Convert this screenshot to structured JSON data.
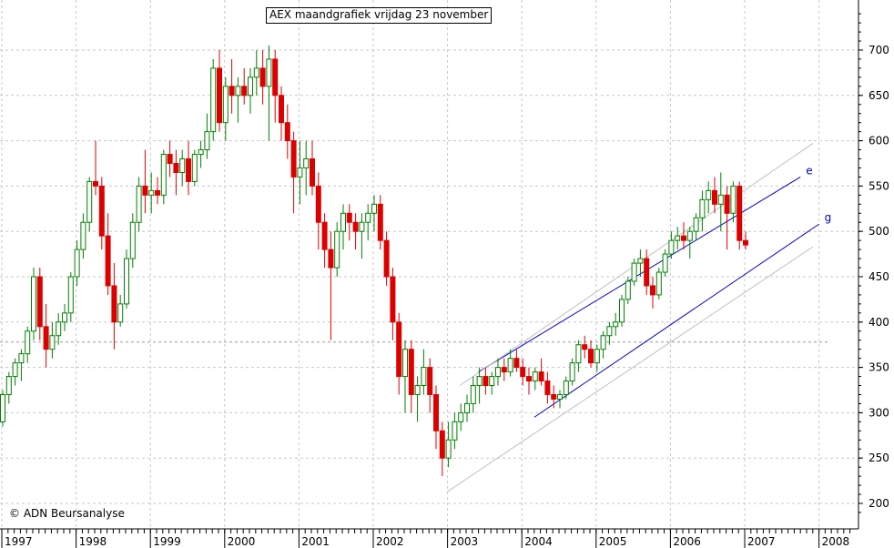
{
  "title": "AEX maandgrafiek vrijdag 23 november",
  "copyright": "© ADN Beursanalyse",
  "colors": {
    "up": "#008000",
    "down": "#dd0000",
    "grid": "#c8c8c8",
    "channel": "#0000cc",
    "outer": "#c0c0c0",
    "refline": "#999999"
  },
  "chart_data": {
    "type": "candlestick",
    "title": "AEX maandgrafiek vrijdag 23 november",
    "ylim": [
      180,
      750
    ],
    "y_ticks": [
      200,
      250,
      300,
      350,
      400,
      450,
      500,
      550,
      600,
      650,
      700
    ],
    "x_start": "1997-01",
    "x_end": "2008-06",
    "year_ticks": [
      "1997",
      "1998",
      "1999",
      "2000",
      "2001",
      "2002",
      "2003",
      "2004",
      "2005",
      "2006",
      "2007",
      "2008"
    ],
    "reference_level": 378,
    "ohlc_note": "each row: [open, high, low, close]; one row per month from 1997-01",
    "ohlc": [
      [
        290,
        325,
        285,
        320
      ],
      [
        320,
        345,
        310,
        340
      ],
      [
        340,
        360,
        330,
        355
      ],
      [
        355,
        370,
        335,
        365
      ],
      [
        365,
        395,
        355,
        390
      ],
      [
        390,
        460,
        380,
        450
      ],
      [
        450,
        460,
        380,
        395
      ],
      [
        395,
        420,
        350,
        370
      ],
      [
        370,
        400,
        360,
        385
      ],
      [
        385,
        410,
        375,
        400
      ],
      [
        400,
        420,
        390,
        410
      ],
      [
        410,
        455,
        400,
        450
      ],
      [
        450,
        490,
        440,
        480
      ],
      [
        480,
        520,
        470,
        510
      ],
      [
        510,
        560,
        500,
        555
      ],
      [
        555,
        600,
        540,
        550
      ],
      [
        550,
        560,
        480,
        495
      ],
      [
        495,
        520,
        430,
        440
      ],
      [
        440,
        465,
        370,
        400
      ],
      [
        400,
        430,
        395,
        420
      ],
      [
        420,
        480,
        415,
        470
      ],
      [
        470,
        520,
        460,
        510
      ],
      [
        510,
        560,
        500,
        550
      ],
      [
        550,
        590,
        520,
        540
      ],
      [
        540,
        565,
        520,
        545
      ],
      [
        545,
        560,
        530,
        540
      ],
      [
        540,
        590,
        530,
        585
      ],
      [
        585,
        600,
        560,
        575
      ],
      [
        575,
        590,
        540,
        565
      ],
      [
        565,
        590,
        550,
        580
      ],
      [
        580,
        600,
        540,
        555
      ],
      [
        555,
        590,
        550,
        585
      ],
      [
        585,
        600,
        570,
        590
      ],
      [
        590,
        630,
        580,
        610
      ],
      [
        610,
        690,
        600,
        680
      ],
      [
        680,
        700,
        610,
        620
      ],
      [
        620,
        670,
        600,
        660
      ],
      [
        660,
        690,
        630,
        650
      ],
      [
        650,
        670,
        620,
        660
      ],
      [
        660,
        680,
        640,
        650
      ],
      [
        650,
        680,
        630,
        670
      ],
      [
        670,
        700,
        650,
        680
      ],
      [
        680,
        700,
        640,
        660
      ],
      [
        660,
        705,
        600,
        690
      ],
      [
        690,
        700,
        620,
        650
      ],
      [
        650,
        660,
        600,
        620
      ],
      [
        620,
        640,
        580,
        600
      ],
      [
        600,
        610,
        520,
        560
      ],
      [
        560,
        600,
        530,
        570
      ],
      [
        570,
        600,
        540,
        580
      ],
      [
        580,
        600,
        540,
        550
      ],
      [
        550,
        565,
        480,
        510
      ],
      [
        510,
        520,
        460,
        480
      ],
      [
        480,
        500,
        380,
        460
      ],
      [
        460,
        510,
        450,
        500
      ],
      [
        500,
        530,
        480,
        520
      ],
      [
        520,
        530,
        490,
        510
      ],
      [
        510,
        520,
        480,
        500
      ],
      [
        500,
        520,
        470,
        510
      ],
      [
        510,
        530,
        490,
        520
      ],
      [
        520,
        540,
        500,
        530
      ],
      [
        530,
        540,
        480,
        490
      ],
      [
        490,
        500,
        440,
        450
      ],
      [
        450,
        460,
        380,
        400
      ],
      [
        400,
        410,
        320,
        340
      ],
      [
        340,
        380,
        300,
        370
      ],
      [
        370,
        380,
        300,
        320
      ],
      [
        320,
        340,
        290,
        330
      ],
      [
        330,
        370,
        320,
        350
      ],
      [
        350,
        360,
        300,
        320
      ],
      [
        320,
        330,
        260,
        280
      ],
      [
        280,
        290,
        230,
        250
      ],
      [
        250,
        290,
        240,
        270
      ],
      [
        270,
        300,
        260,
        290
      ],
      [
        290,
        310,
        280,
        300
      ],
      [
        300,
        320,
        290,
        310
      ],
      [
        310,
        340,
        300,
        330
      ],
      [
        330,
        350,
        310,
        340
      ],
      [
        340,
        350,
        320,
        330
      ],
      [
        330,
        345,
        320,
        340
      ],
      [
        340,
        360,
        330,
        350
      ],
      [
        350,
        360,
        335,
        345
      ],
      [
        345,
        370,
        340,
        360
      ],
      [
        360,
        370,
        345,
        350
      ],
      [
        350,
        360,
        330,
        340
      ],
      [
        340,
        350,
        320,
        335
      ],
      [
        335,
        350,
        325,
        345
      ],
      [
        345,
        360,
        330,
        335
      ],
      [
        335,
        345,
        310,
        320
      ],
      [
        320,
        330,
        305,
        315
      ],
      [
        315,
        325,
        305,
        320
      ],
      [
        320,
        340,
        315,
        335
      ],
      [
        335,
        360,
        330,
        355
      ],
      [
        355,
        380,
        345,
        375
      ],
      [
        375,
        385,
        360,
        370
      ],
      [
        370,
        380,
        350,
        355
      ],
      [
        355,
        375,
        345,
        370
      ],
      [
        370,
        390,
        360,
        385
      ],
      [
        385,
        400,
        375,
        395
      ],
      [
        395,
        410,
        385,
        400
      ],
      [
        400,
        430,
        395,
        425
      ],
      [
        425,
        450,
        420,
        445
      ],
      [
        445,
        470,
        440,
        465
      ],
      [
        465,
        480,
        450,
        470
      ],
      [
        470,
        480,
        430,
        440
      ],
      [
        440,
        450,
        415,
        430
      ],
      [
        430,
        460,
        425,
        455
      ],
      [
        455,
        480,
        450,
        475
      ],
      [
        475,
        500,
        470,
        490
      ],
      [
        490,
        505,
        480,
        495
      ],
      [
        495,
        510,
        480,
        490
      ],
      [
        490,
        505,
        470,
        500
      ],
      [
        500,
        520,
        490,
        515
      ],
      [
        515,
        545,
        500,
        535
      ],
      [
        535,
        555,
        520,
        545
      ],
      [
        545,
        560,
        520,
        530
      ],
      [
        530,
        565,
        500,
        540
      ],
      [
        540,
        550,
        480,
        520
      ],
      [
        520,
        555,
        510,
        550
      ],
      [
        550,
        555,
        480,
        490
      ],
      [
        490,
        500,
        480,
        485
      ]
    ],
    "channel_lines": [
      {
        "name": "e",
        "from": [
          "2003-06",
          345
        ],
        "to": [
          "2007-10",
          560
        ]
      },
      {
        "name": "g",
        "from": [
          "2004-03",
          295
        ],
        "to": [
          "2008-01",
          508
        ]
      },
      {
        "name": "",
        "from": [
          "2003-03",
          330
        ],
        "to": [
          "2007-12",
          597
        ]
      },
      {
        "name": "",
        "from": [
          "2003-01",
          213
        ],
        "to": [
          "2007-12",
          483
        ]
      }
    ]
  }
}
